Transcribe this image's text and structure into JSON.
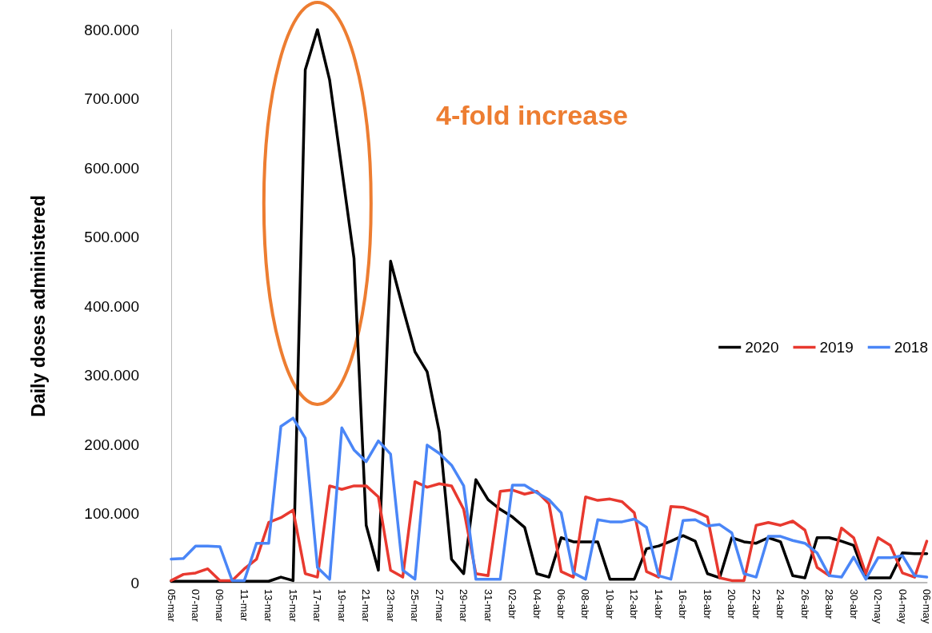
{
  "chart_data": {
    "type": "line",
    "ylabel": "Daily doses administered",
    "annotations": [
      "4-fold increase"
    ],
    "categories": [
      "05-mar",
      null,
      "07-mar",
      null,
      "09-mar",
      null,
      "11-mar",
      null,
      "13-mar",
      null,
      "15-mar",
      null,
      "17-mar",
      null,
      "19-mar",
      null,
      "21-mar",
      null,
      "23-mar",
      null,
      "25-mar",
      null,
      "27-mar",
      null,
      "29-mar",
      null,
      "31-mar",
      null,
      "02-abr",
      null,
      "04-abr",
      null,
      "06-abr",
      null,
      "08-abr",
      null,
      "10-abr",
      null,
      "12-abr",
      null,
      "14-abr",
      null,
      "16-abr",
      null,
      "18-abr",
      null,
      "20-abr",
      null,
      "22-abr",
      null,
      "24-abr",
      null,
      "26-abr",
      null,
      "28-abr",
      null,
      "30-abr",
      null,
      "02-may",
      null,
      "04-may",
      null,
      "06-may"
    ],
    "series": [
      {
        "name": "2020",
        "color": "#000000",
        "values": [
          2000,
          2000,
          2000,
          2000,
          2000,
          2000,
          2000,
          2000,
          2000,
          8000,
          3000,
          742000,
          800000,
          727000,
          598000,
          469000,
          83000,
          18000,
          465000,
          398000,
          334000,
          305000,
          218000,
          34000,
          13000,
          149000,
          120000,
          106000,
          95000,
          80000,
          13000,
          8000,
          65000,
          59000,
          59000,
          59000,
          5000,
          5000,
          5000,
          49000,
          53000,
          60000,
          68000,
          60000,
          13000,
          7000,
          65000,
          59000,
          57000,
          65000,
          59000,
          10000,
          7000,
          65000,
          65000,
          60000,
          54000,
          7000,
          7000,
          7000,
          43000,
          42000,
          42000
        ]
      },
      {
        "name": "2019",
        "color": "#e8392f",
        "values": [
          3000,
          12000,
          14000,
          20000,
          3000,
          3000,
          20000,
          34000,
          87000,
          94000,
          105000,
          13000,
          8000,
          140000,
          135000,
          140000,
          140000,
          124000,
          18000,
          8000,
          146000,
          138000,
          143000,
          140000,
          106000,
          13000,
          10000,
          132000,
          134000,
          128000,
          132000,
          114000,
          16000,
          8000,
          124000,
          119000,
          121000,
          117000,
          101000,
          16000,
          8000,
          110000,
          109000,
          103000,
          95000,
          7000,
          3000,
          3000,
          83000,
          87000,
          83000,
          89000,
          76000,
          22000,
          10000,
          79000,
          65000,
          13000,
          65000,
          54000,
          14000,
          8000,
          60000
        ]
      },
      {
        "name": "2018",
        "color": "#4a86f7",
        "values": [
          34000,
          35000,
          53000,
          53000,
          52000,
          3000,
          3000,
          57000,
          57000,
          226000,
          238000,
          209000,
          22000,
          5000,
          224000,
          192000,
          175000,
          205000,
          186000,
          18000,
          5000,
          199000,
          187000,
          170000,
          140000,
          5000,
          5000,
          5000,
          141000,
          141000,
          130000,
          120000,
          101000,
          14000,
          5000,
          91000,
          88000,
          88000,
          92000,
          80000,
          10000,
          5000,
          90000,
          91000,
          82000,
          84000,
          72000,
          13000,
          8000,
          67000,
          67000,
          61000,
          57000,
          43000,
          10000,
          8000,
          37000,
          5000,
          36000,
          36000,
          39000,
          10000,
          8000
        ]
      }
    ],
    "ylim": [
      0,
      800000
    ],
    "yticks": [
      0,
      {
        "value": 100000,
        "label": "100.000"
      },
      {
        "value": 200000,
        "label": "200.000"
      },
      {
        "value": 300000,
        "label": "300.000"
      },
      {
        "value": 400000,
        "label": "400.000"
      },
      {
        "value": 500000,
        "label": "500.000"
      },
      {
        "value": 600000,
        "label": "600.000"
      },
      {
        "value": 700000,
        "label": "700.000"
      },
      {
        "value": 800000,
        "label": "800.000"
      }
    ],
    "grid": false,
    "legend": "right",
    "marker": "none",
    "line_style": "solid"
  }
}
